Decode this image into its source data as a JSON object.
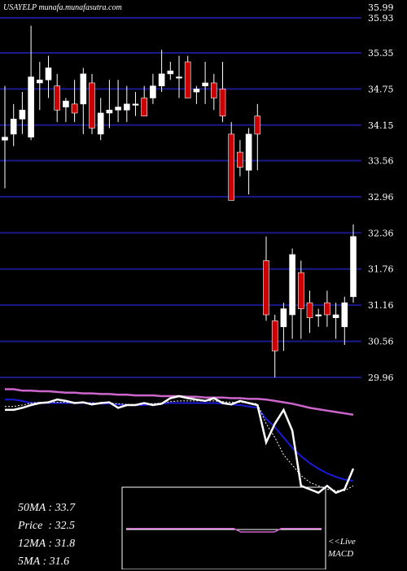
{
  "header": {
    "ticker": "USAYELP munafa.munafasutra.com"
  },
  "stats": [
    {
      "label": "50MA",
      "value": "33.7"
    },
    {
      "label": "Price",
      "value": "32.5"
    },
    {
      "label": "12MA",
      "value": "31.8"
    },
    {
      "label": "5MA",
      "value": "31.6"
    }
  ],
  "macd_panel": {
    "line1": "<<Live",
    "line2": "MACD"
  },
  "colors": {
    "background": "#000000",
    "grid": "#1a1a8c",
    "up_candle": "#ffffff",
    "down_candle": "#cc0000",
    "ma_long": "#cc66cc",
    "ma_mid": "#1a1ad9",
    "ma_short": "#ffffff",
    "ma_dotted": "#ffffff"
  },
  "chart_data": {
    "type": "candlestick",
    "y_ticks": [
      "35.93",
      "35.35",
      "34.75",
      "34.15",
      "33.56",
      "32.96",
      "32.36",
      "31.76",
      "31.16",
      "30.56",
      "29.96"
    ],
    "y_top_label": "35.99",
    "ylim": [
      29.96,
      35.99
    ],
    "candles": [
      {
        "o": 33.95,
        "h": 34.8,
        "l": 33.1,
        "c": 33.9,
        "up": true
      },
      {
        "o": 34.0,
        "h": 34.5,
        "l": 33.8,
        "c": 34.25,
        "up": true
      },
      {
        "o": 34.25,
        "h": 34.7,
        "l": 34.0,
        "c": 34.4,
        "up": true
      },
      {
        "o": 33.95,
        "h": 35.8,
        "l": 33.9,
        "c": 34.95,
        "up": true
      },
      {
        "o": 34.85,
        "h": 35.2,
        "l": 34.4,
        "c": 34.9,
        "up": true
      },
      {
        "o": 34.9,
        "h": 35.3,
        "l": 34.6,
        "c": 35.1,
        "up": true
      },
      {
        "o": 34.8,
        "h": 35.0,
        "l": 34.2,
        "c": 34.4,
        "up": false
      },
      {
        "o": 34.45,
        "h": 34.6,
        "l": 34.2,
        "c": 34.55,
        "up": true
      },
      {
        "o": 34.5,
        "h": 34.9,
        "l": 34.2,
        "c": 34.35,
        "up": false
      },
      {
        "o": 34.5,
        "h": 35.1,
        "l": 34.0,
        "c": 35.0,
        "up": true
      },
      {
        "o": 34.85,
        "h": 35.0,
        "l": 34.0,
        "c": 34.1,
        "up": false
      },
      {
        "o": 34.0,
        "h": 34.6,
        "l": 33.9,
        "c": 34.35,
        "up": true
      },
      {
        "o": 34.35,
        "h": 34.9,
        "l": 34.1,
        "c": 34.4,
        "up": true
      },
      {
        "o": 34.4,
        "h": 34.9,
        "l": 34.2,
        "c": 34.45,
        "up": true
      },
      {
        "o": 34.4,
        "h": 34.8,
        "l": 34.2,
        "c": 34.5,
        "up": true
      },
      {
        "o": 34.5,
        "h": 34.7,
        "l": 34.3,
        "c": 34.5,
        "up": true
      },
      {
        "o": 34.6,
        "h": 34.8,
        "l": 34.3,
        "c": 34.3,
        "up": false
      },
      {
        "o": 34.6,
        "h": 35.0,
        "l": 34.5,
        "c": 34.8,
        "up": true
      },
      {
        "o": 34.8,
        "h": 35.4,
        "l": 34.7,
        "c": 35.0,
        "up": true
      },
      {
        "o": 35.0,
        "h": 35.2,
        "l": 34.9,
        "c": 35.05,
        "up": true
      },
      {
        "o": 34.95,
        "h": 35.3,
        "l": 34.6,
        "c": 34.95,
        "up": true
      },
      {
        "o": 35.2,
        "h": 35.3,
        "l": 34.6,
        "c": 34.6,
        "up": false
      },
      {
        "o": 34.7,
        "h": 34.8,
        "l": 34.5,
        "c": 34.75,
        "up": true
      },
      {
        "o": 34.8,
        "h": 35.2,
        "l": 34.5,
        "c": 34.85,
        "up": true
      },
      {
        "o": 34.85,
        "h": 35.0,
        "l": 34.4,
        "c": 34.6,
        "up": false
      },
      {
        "o": 34.75,
        "h": 35.2,
        "l": 34.2,
        "c": 34.3,
        "up": false
      },
      {
        "o": 34.0,
        "h": 34.2,
        "l": 32.9,
        "c": 32.9,
        "up": false
      },
      {
        "o": 33.7,
        "h": 33.9,
        "l": 33.3,
        "c": 33.45,
        "up": false
      },
      {
        "o": 33.4,
        "h": 34.1,
        "l": 33.0,
        "c": 34.0,
        "up": true
      },
      {
        "o": 34.3,
        "h": 34.5,
        "l": 33.4,
        "c": 34.0,
        "up": false
      },
      {
        "o": 31.9,
        "h": 32.3,
        "l": 30.9,
        "c": 31.0,
        "up": false
      },
      {
        "o": 30.9,
        "h": 31.0,
        "l": 29.96,
        "c": 30.4,
        "up": false
      },
      {
        "o": 30.8,
        "h": 31.2,
        "l": 30.4,
        "c": 31.1,
        "up": true
      },
      {
        "o": 31.0,
        "h": 32.1,
        "l": 30.6,
        "c": 32.0,
        "up": true
      },
      {
        "o": 31.7,
        "h": 31.9,
        "l": 30.6,
        "c": 31.1,
        "up": false
      },
      {
        "o": 31.2,
        "h": 31.4,
        "l": 30.7,
        "c": 30.95,
        "up": false
      },
      {
        "o": 31.0,
        "h": 31.1,
        "l": 30.8,
        "c": 31.0,
        "up": true
      },
      {
        "o": 31.2,
        "h": 31.4,
        "l": 30.8,
        "c": 31.0,
        "up": false
      },
      {
        "o": 30.95,
        "h": 31.2,
        "l": 30.6,
        "c": 31.0,
        "up": true
      },
      {
        "o": 30.8,
        "h": 31.3,
        "l": 30.5,
        "c": 31.2,
        "up": true
      },
      {
        "o": 31.3,
        "h": 32.5,
        "l": 31.2,
        "c": 32.3,
        "up": true
      }
    ],
    "ma_long": [
      34.05,
      34.05,
      34.03,
      34.03,
      34.02,
      34.02,
      34.01,
      34.0,
      34.0,
      33.99,
      33.99,
      33.98,
      33.98,
      33.97,
      33.97,
      33.96,
      33.96,
      33.96,
      33.95,
      33.95,
      33.95,
      33.94,
      33.94,
      33.93,
      33.93,
      33.93,
      33.92,
      33.92,
      33.91,
      33.91,
      33.9,
      33.88,
      33.86,
      33.84,
      33.81,
      33.78,
      33.76,
      33.74,
      33.72,
      33.7,
      33.68
    ],
    "ma_mid": [
      33.9,
      33.9,
      33.88,
      33.85,
      33.85,
      33.85,
      33.85,
      33.85,
      33.85,
      33.85,
      33.85,
      33.84,
      33.84,
      33.83,
      33.82,
      33.82,
      33.82,
      33.83,
      33.84,
      33.85,
      33.85,
      33.85,
      33.85,
      33.85,
      33.85,
      33.84,
      33.83,
      33.82,
      33.8,
      33.78,
      33.62,
      33.5,
      33.35,
      33.2,
      33.08,
      32.98,
      32.9,
      32.83,
      32.78,
      32.74,
      32.72
    ],
    "ma_short": [
      33.75,
      33.75,
      33.78,
      33.82,
      33.85,
      33.86,
      33.9,
      33.88,
      33.85,
      33.86,
      33.83,
      33.85,
      33.86,
      33.78,
      33.82,
      33.82,
      33.85,
      33.82,
      33.84,
      33.92,
      33.95,
      33.92,
      33.9,
      33.88,
      33.92,
      33.85,
      33.83,
      33.88,
      33.85,
      33.82,
      33.28,
      33.55,
      33.75,
      33.45,
      32.65,
      32.6,
      32.55,
      32.65,
      32.55,
      32.6,
      32.9
    ],
    "ma_dotted": [
      33.8,
      33.8,
      33.82,
      33.85,
      33.86,
      33.86,
      33.86,
      33.86,
      33.85,
      33.85,
      33.85,
      33.85,
      33.85,
      33.84,
      33.83,
      33.83,
      33.84,
      33.84,
      33.85,
      33.87,
      33.88,
      33.88,
      33.88,
      33.88,
      33.88,
      33.87,
      33.86,
      33.86,
      33.85,
      33.84,
      33.55,
      33.35,
      33.1,
      32.95,
      32.8,
      32.7,
      32.65,
      32.6,
      32.58,
      32.58,
      32.65
    ],
    "macd": [
      0.02,
      0.02,
      0.02,
      0.02,
      0.02,
      0.02,
      0.02,
      0.02,
      0.02,
      0.02,
      0.02,
      0.02,
      0.02,
      0.02,
      0.02,
      0.02,
      0.02,
      -0.05,
      -0.05,
      -0.05,
      -0.05,
      -0.05,
      -0.05,
      0.02,
      0.02,
      0.02,
      0.02,
      0.02,
      0.02,
      0.02
    ]
  }
}
